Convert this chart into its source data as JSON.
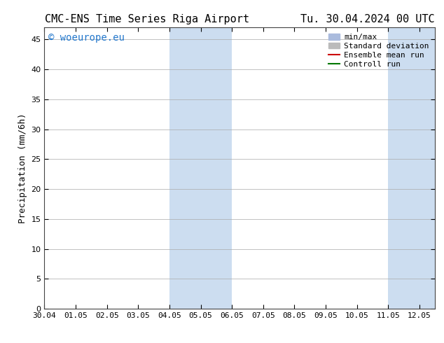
{
  "title_left": "CMC-ENS Time Series Riga Airport",
  "title_right": "Tu. 30.04.2024 00 UTC",
  "ylabel": "Precipitation (mm/6h)",
  "ylim": [
    0,
    47
  ],
  "yticks": [
    0,
    5,
    10,
    15,
    20,
    25,
    30,
    35,
    40,
    45
  ],
  "xlim": [
    0,
    12.5
  ],
  "xtick_labels": [
    "30.04",
    "01.05",
    "02.05",
    "03.05",
    "04.05",
    "05.05",
    "06.05",
    "07.05",
    "08.05",
    "09.05",
    "10.05",
    "11.05",
    "12.05"
  ],
  "shaded_regions": [
    {
      "x_start": 4.0,
      "x_end": 6.0,
      "color": "#ccddf0"
    },
    {
      "x_start": 11.0,
      "x_end": 12.5,
      "color": "#ccddf0"
    }
  ],
  "background_color": "#ffffff",
  "plot_background_color": "#ffffff",
  "grid_color": "#aaaaaa",
  "watermark_text": "© woeurope.eu",
  "watermark_color": "#2277cc",
  "legend_entries": [
    {
      "label": "min/max",
      "color": "#aabbdd",
      "type": "patch"
    },
    {
      "label": "Standard deviation",
      "color": "#bbbbbb",
      "type": "patch"
    },
    {
      "label": "Ensemble mean run",
      "color": "#cc0000",
      "type": "line",
      "lw": 1.5
    },
    {
      "label": "Controll run",
      "color": "#007700",
      "type": "line",
      "lw": 1.5
    }
  ],
  "title_fontsize": 11,
  "axis_label_fontsize": 9,
  "tick_fontsize": 8,
  "legend_fontsize": 8,
  "watermark_fontsize": 10
}
